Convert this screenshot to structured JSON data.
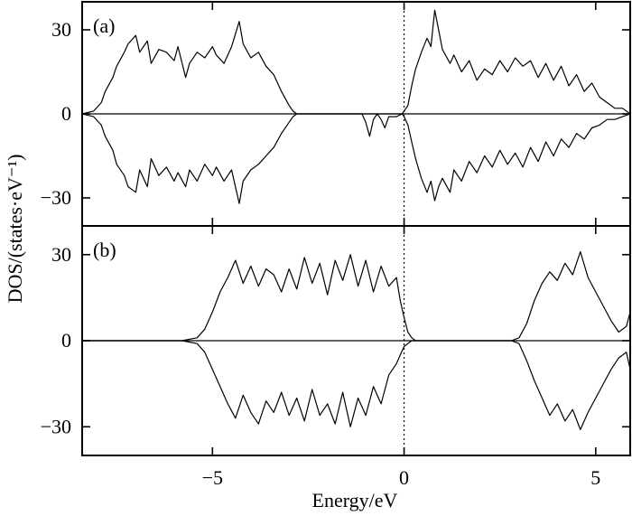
{
  "chart_data": {
    "type": "line",
    "xlabel": "Energy/eV",
    "ylabel": "DOS/(states·eV⁻¹)",
    "xlim": [
      -8.4,
      5.9
    ],
    "x_ticks": [
      -5,
      0,
      5
    ],
    "x_tick_labels": [
      "−5",
      "0",
      "5"
    ],
    "fermi_level_x": 0,
    "panels": [
      {
        "label": "(a)",
        "ylim": [
          -40,
          40
        ],
        "y_ticks": [
          30,
          0,
          -30
        ],
        "y_tick_labels": [
          "30",
          "0",
          "−30"
        ],
        "series": [
          {
            "spin": "up",
            "x": [
              -8.4,
              -8.1,
              -7.9,
              -7.8,
              -7.6,
              -7.5,
              -7.3,
              -7.2,
              -7.0,
              -6.9,
              -6.7,
              -6.6,
              -6.4,
              -6.2,
              -6.0,
              -5.9,
              -5.7,
              -5.6,
              -5.4,
              -5.2,
              -5.0,
              -4.9,
              -4.7,
              -4.5,
              -4.3,
              -4.2,
              -4.0,
              -3.8,
              -3.6,
              -3.4,
              -3.2,
              -3.0,
              -2.9,
              -2.8,
              -2.7,
              -2.4,
              -2.0,
              -1.5,
              -1.0,
              -0.8,
              -0.6,
              -0.4,
              -0.2,
              -0.05,
              0.0,
              0.1,
              0.2,
              0.3,
              0.45,
              0.6,
              0.7,
              0.8,
              0.9,
              1.0,
              1.2,
              1.3,
              1.5,
              1.7,
              1.9,
              2.1,
              2.3,
              2.5,
              2.7,
              2.9,
              3.1,
              3.3,
              3.5,
              3.7,
              3.9,
              4.1,
              4.3,
              4.5,
              4.7,
              4.9,
              5.1,
              5.3,
              5.5,
              5.7,
              5.9
            ],
            "y": [
              0,
              1,
              4,
              8,
              13,
              17,
              22,
              25,
              28,
              22,
              26,
              18,
              23,
              22,
              19,
              24,
              13,
              18,
              22,
              20,
              24,
              21,
              18,
              24,
              33,
              25,
              20,
              22,
              17,
              14,
              8,
              3,
              1,
              0,
              0,
              0,
              0,
              0,
              0,
              0,
              0,
              0,
              0,
              0,
              1,
              3,
              10,
              16,
              22,
              27,
              24,
              37,
              30,
              23,
              18,
              21,
              15,
              19,
              12,
              16,
              14,
              19,
              15,
              20,
              17,
              19,
              13,
              18,
              12,
              17,
              10,
              14,
              8,
              11,
              6,
              4,
              2,
              2,
              0
            ]
          },
          {
            "spin": "down",
            "x": [
              -8.4,
              -8.1,
              -7.9,
              -7.8,
              -7.6,
              -7.5,
              -7.3,
              -7.2,
              -7.0,
              -6.9,
              -6.7,
              -6.6,
              -6.4,
              -6.2,
              -6.0,
              -5.9,
              -5.7,
              -5.6,
              -5.4,
              -5.2,
              -5.0,
              -4.9,
              -4.7,
              -4.5,
              -4.3,
              -4.2,
              -4.0,
              -3.8,
              -3.6,
              -3.4,
              -3.2,
              -3.0,
              -2.9,
              -2.8,
              -2.7,
              -2.4,
              -2.0,
              -1.5,
              -1.1,
              -1.0,
              -0.9,
              -0.8,
              -0.7,
              -0.6,
              -0.5,
              -0.4,
              -0.2,
              -0.05,
              0.0,
              0.1,
              0.2,
              0.3,
              0.45,
              0.6,
              0.7,
              0.8,
              0.9,
              1.0,
              1.2,
              1.3,
              1.5,
              1.7,
              1.9,
              2.1,
              2.3,
              2.5,
              2.7,
              2.9,
              3.1,
              3.3,
              3.5,
              3.7,
              3.9,
              4.1,
              4.3,
              4.5,
              4.7,
              4.9,
              5.1,
              5.3,
              5.5,
              5.7,
              5.9
            ],
            "y": [
              0,
              -1,
              -4,
              -8,
              -13,
              -18,
              -22,
              -26,
              -28,
              -20,
              -26,
              -16,
              -22,
              -19,
              -24,
              -21,
              -26,
              -20,
              -24,
              -18,
              -22,
              -19,
              -24,
              -20,
              -32,
              -24,
              -20,
              -18,
              -15,
              -12,
              -7,
              -3,
              -1,
              0,
              0,
              0,
              0,
              0,
              0,
              -3,
              -8,
              -2,
              0,
              -2,
              -5,
              -1,
              -1,
              0,
              -1,
              -4,
              -10,
              -16,
              -23,
              -28,
              -24,
              -31,
              -26,
              -23,
              -28,
              -20,
              -24,
              -17,
              -21,
              -15,
              -19,
              -13,
              -18,
              -14,
              -19,
              -12,
              -17,
              -10,
              -15,
              -9,
              -12,
              -7,
              -9,
              -5,
              -4,
              -2,
              -2,
              -1,
              0
            ]
          }
        ]
      },
      {
        "label": "(b)",
        "ylim": [
          -40,
          40
        ],
        "y_ticks": [
          30,
          0,
          -30
        ],
        "y_tick_labels": [
          "30",
          "0",
          "−30"
        ],
        "series": [
          {
            "spin": "up",
            "x": [
              -8.4,
              -5.8,
              -5.4,
              -5.2,
              -5.0,
              -4.8,
              -4.6,
              -4.4,
              -4.2,
              -4.0,
              -3.8,
              -3.6,
              -3.4,
              -3.2,
              -3.0,
              -2.8,
              -2.6,
              -2.4,
              -2.2,
              -2.0,
              -1.8,
              -1.6,
              -1.4,
              -1.2,
              -1.0,
              -0.8,
              -0.6,
              -0.4,
              -0.2,
              -0.1,
              0.0,
              0.1,
              0.2,
              0.3,
              0.5,
              1.0,
              2.0,
              2.8,
              3.0,
              3.2,
              3.4,
              3.6,
              3.8,
              4.0,
              4.2,
              4.4,
              4.6,
              4.8,
              5.0,
              5.2,
              5.4,
              5.6,
              5.8,
              5.9
            ],
            "y": [
              0,
              0,
              1,
              4,
              10,
              17,
              22,
              28,
              20,
              26,
              19,
              25,
              23,
              17,
              25,
              18,
              29,
              20,
              27,
              16,
              28,
              21,
              30,
              19,
              28,
              17,
              26,
              19,
              22,
              14,
              8,
              3,
              1,
              0,
              0,
              0,
              0,
              0,
              1,
              6,
              14,
              20,
              24,
              21,
              27,
              23,
              31,
              22,
              17,
              12,
              7,
              3,
              5,
              10
            ]
          },
          {
            "spin": "down",
            "x": [
              -8.4,
              -5.8,
              -5.4,
              -5.2,
              -5.0,
              -4.8,
              -4.6,
              -4.4,
              -4.2,
              -4.0,
              -3.8,
              -3.6,
              -3.4,
              -3.2,
              -3.0,
              -2.8,
              -2.6,
              -2.4,
              -2.2,
              -2.0,
              -1.8,
              -1.6,
              -1.4,
              -1.2,
              -1.0,
              -0.8,
              -0.6,
              -0.4,
              -0.2,
              -0.1,
              0.0,
              0.1,
              0.2,
              0.3,
              0.5,
              1.0,
              2.0,
              2.8,
              3.0,
              3.2,
              3.4,
              3.6,
              3.8,
              4.0,
              4.2,
              4.4,
              4.6,
              4.8,
              5.0,
              5.2,
              5.4,
              5.6,
              5.8,
              5.9
            ],
            "y": [
              0,
              0,
              -1,
              -4,
              -10,
              -16,
              -22,
              -27,
              -19,
              -25,
              -29,
              -21,
              -25,
              -18,
              -26,
              -20,
              -28,
              -17,
              -26,
              -22,
              -29,
              -18,
              -30,
              -20,
              -26,
              -16,
              -22,
              -12,
              -8,
              -5,
              -2,
              -1,
              0,
              0,
              0,
              0,
              0,
              0,
              -1,
              -7,
              -14,
              -20,
              -26,
              -22,
              -28,
              -24,
              -31,
              -25,
              -20,
              -15,
              -10,
              -6,
              -4,
              -10
            ]
          }
        ]
      }
    ]
  }
}
